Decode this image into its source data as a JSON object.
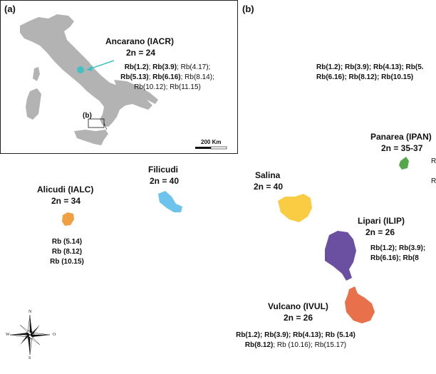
{
  "panels": {
    "a": "(a)",
    "b": "(b)",
    "inset_b": "(b)"
  },
  "scale_bar": {
    "label": "200 Km"
  },
  "compass": {
    "n": "N",
    "s": "S",
    "e": "O",
    "w": "W"
  },
  "colors": {
    "land_grey": "#b3b3b3",
    "ancarano": "#43c1c2",
    "alicudi": "#f0a040",
    "filicudi": "#6cc4ec",
    "salina": "#f9cc44",
    "panarea": "#55a84a",
    "lipari": "#6b4fa1",
    "vulcano": "#e8704a"
  },
  "sites": {
    "ancarano": {
      "name": "Ancarano (IACR)",
      "chrom": "2n = 24",
      "rb_lines": [
        [
          {
            "t": "Rb(1.2)",
            "b": true
          },
          {
            "t": "; ",
            "b": false
          },
          {
            "t": "Rb(3.9)",
            "b": true
          },
          {
            "t": "; Rb(4.17);",
            "b": false
          }
        ],
        [
          {
            "t": "Rb(5.13)",
            "b": true
          },
          {
            "t": "; ",
            "b": false
          },
          {
            "t": "Rb(6.16)",
            "b": true
          },
          {
            "t": "; Rb(8.14);",
            "b": false
          }
        ],
        [
          {
            "t": "Rb(10.12); Rb(11.15)",
            "b": false
          }
        ]
      ]
    },
    "panarea_rb": {
      "rb_lines": [
        [
          {
            "t": "Rb(1.2); Rb(3.9); Rb(4.13); Rb(5.",
            "b": true
          }
        ],
        [
          {
            "t": "Rb(6.16); Rb(8.12); Rb(10.15)",
            "b": true
          }
        ]
      ]
    },
    "panarea": {
      "name": "Panarea (IPAN)",
      "chrom": "2n = 35-37",
      "side_r1": "R",
      "side_r2": "R"
    },
    "filicudi": {
      "name": "Filicudi",
      "chrom": "2n = 40"
    },
    "salina": {
      "name": "Salina",
      "chrom": "2n = 40"
    },
    "alicudi": {
      "name": "Alicudi (IALC)",
      "chrom": "2n = 34",
      "rb_lines": [
        [
          {
            "t": "Rb (5.14)",
            "b": true
          }
        ],
        [
          {
            "t": "Rb (8.12)",
            "b": true
          }
        ],
        [
          {
            "t": "Rb (10.15)",
            "b": true
          }
        ]
      ]
    },
    "lipari": {
      "name": "Lipari (ILIP)",
      "chrom": "2n = 26",
      "rb_lines": [
        [
          {
            "t": "Rb(1.2); Rb(3.9);",
            "b": true
          }
        ],
        [
          {
            "t": "Rb(6.16); Rb(8",
            "b": true
          }
        ]
      ]
    },
    "vulcano": {
      "name": "Vulcano (IVUL)",
      "chrom": "2n = 26",
      "rb_lines": [
        [
          {
            "t": "Rb(1.2); Rb(3.9); Rb(4.13); Rb (5.14)",
            "b": true
          }
        ],
        [
          {
            "t": "Rb(8.12)",
            "b": true
          },
          {
            "t": "; Rb (10.16); Rb(15.17)",
            "b": false
          }
        ]
      ]
    }
  }
}
